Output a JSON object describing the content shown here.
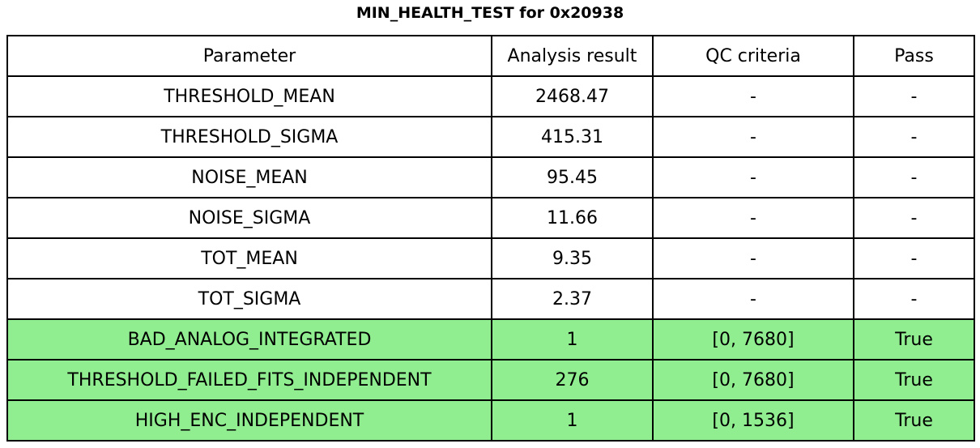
{
  "colors": {
    "pass_row_bg": "#90EE90",
    "border": "#000000",
    "background": "#FFFFFF",
    "text": "#000000"
  },
  "chart_data": {
    "type": "table",
    "title": "MIN_HEALTH_TEST for 0x20938",
    "columns": [
      "Parameter",
      "Analysis result",
      "QC criteria",
      "Pass"
    ],
    "rows": [
      {
        "parameter": "THRESHOLD_MEAN",
        "analysis_result": "2468.47",
        "qc_criteria": "-",
        "pass_value": "-",
        "highlight": false
      },
      {
        "parameter": "THRESHOLD_SIGMA",
        "analysis_result": "415.31",
        "qc_criteria": "-",
        "pass_value": "-",
        "highlight": false
      },
      {
        "parameter": "NOISE_MEAN",
        "analysis_result": "95.45",
        "qc_criteria": "-",
        "pass_value": "-",
        "highlight": false
      },
      {
        "parameter": "NOISE_SIGMA",
        "analysis_result": "11.66",
        "qc_criteria": "-",
        "pass_value": "-",
        "highlight": false
      },
      {
        "parameter": "TOT_MEAN",
        "analysis_result": "9.35",
        "qc_criteria": "-",
        "pass_value": "-",
        "highlight": false
      },
      {
        "parameter": "TOT_SIGMA",
        "analysis_result": "2.37",
        "qc_criteria": "-",
        "pass_value": "-",
        "highlight": false
      },
      {
        "parameter": "BAD_ANALOG_INTEGRATED",
        "analysis_result": "1",
        "qc_criteria": "[0, 7680]",
        "pass_value": "True",
        "highlight": true
      },
      {
        "parameter": "THRESHOLD_FAILED_FITS_INDEPENDENT",
        "analysis_result": "276",
        "qc_criteria": "[0, 7680]",
        "pass_value": "True",
        "highlight": true
      },
      {
        "parameter": "HIGH_ENC_INDEPENDENT",
        "analysis_result": "1",
        "qc_criteria": "[0, 1536]",
        "pass_value": "True",
        "highlight": true
      }
    ]
  }
}
